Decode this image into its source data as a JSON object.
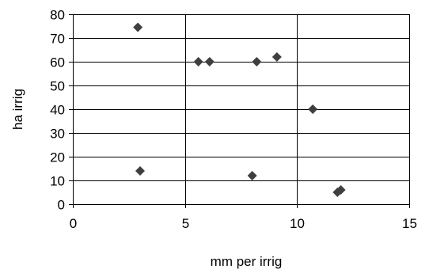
{
  "chart_data": {
    "type": "scatter",
    "title": "",
    "xlabel": "mm per irrig",
    "ylabel": "ha irrig",
    "xlim": [
      0,
      15
    ],
    "ylim": [
      0,
      80
    ],
    "x_ticks": [
      "0",
      "5",
      "10",
      "15"
    ],
    "y_ticks": [
      "0",
      "10",
      "20",
      "30",
      "40",
      "50",
      "60",
      "70",
      "80"
    ],
    "grid": "on",
    "marker": "diamond",
    "colors": {
      "marker": "#3f3f3f",
      "grid": "#000000",
      "axis": "#000000"
    },
    "series": [
      {
        "points": [
          {
            "x": 2.9,
            "y": 74.5
          },
          {
            "x": 3.0,
            "y": 14
          },
          {
            "x": 5.6,
            "y": 60
          },
          {
            "x": 6.1,
            "y": 60
          },
          {
            "x": 8.2,
            "y": 60
          },
          {
            "x": 9.1,
            "y": 62
          },
          {
            "x": 8.0,
            "y": 12
          },
          {
            "x": 10.7,
            "y": 40
          },
          {
            "x": 11.8,
            "y": 5
          },
          {
            "x": 11.95,
            "y": 6
          }
        ]
      }
    ]
  }
}
